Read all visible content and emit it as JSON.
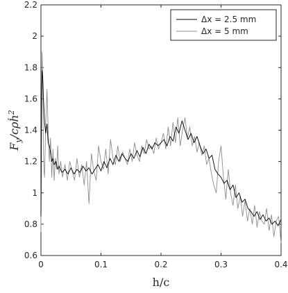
{
  "chart_data": {
    "type": "line",
    "xlabel": "h/c",
    "ylabel_main": "F",
    "ylabel_sub": "y",
    "ylabel_rest": "/cρḣ",
    "ylabel_sup": "2",
    "xlim": [
      0,
      0.4
    ],
    "ylim": [
      0.6,
      2.2
    ],
    "x_ticks": [
      0,
      0.1,
      0.2,
      0.3,
      0.4
    ],
    "x_tick_labels": [
      "0",
      "0.1",
      "0.2",
      "0.3",
      "0.4"
    ],
    "y_ticks": [
      0.6,
      0.8,
      1.0,
      1.2,
      1.4,
      1.6,
      1.8,
      2.0,
      2.2
    ],
    "y_tick_labels": [
      "0.6",
      "0.8",
      "1",
      "1.2",
      "1.4",
      "1.6",
      "1.8",
      "2",
      "2.2"
    ],
    "grid": false,
    "legend_position": "top-right",
    "series": [
      {
        "name": "Δx = 2.5 mm",
        "color": "#000000",
        "x": [
          0,
          0.001,
          0.002,
          0.003,
          0.004,
          0.006,
          0.008,
          0.01,
          0.012,
          0.014,
          0.016,
          0.018,
          0.02,
          0.022,
          0.025,
          0.028,
          0.03,
          0.035,
          0.04,
          0.045,
          0.05,
          0.055,
          0.06,
          0.065,
          0.07,
          0.075,
          0.08,
          0.085,
          0.09,
          0.095,
          0.1,
          0.105,
          0.11,
          0.115,
          0.12,
          0.125,
          0.13,
          0.135,
          0.14,
          0.145,
          0.15,
          0.155,
          0.16,
          0.165,
          0.17,
          0.175,
          0.18,
          0.185,
          0.19,
          0.195,
          0.2,
          0.205,
          0.21,
          0.215,
          0.22,
          0.225,
          0.23,
          0.235,
          0.24,
          0.245,
          0.25,
          0.255,
          0.26,
          0.265,
          0.27,
          0.275,
          0.28,
          0.285,
          0.29,
          0.295,
          0.3,
          0.305,
          0.31,
          0.315,
          0.32,
          0.325,
          0.33,
          0.335,
          0.34,
          0.345,
          0.35,
          0.355,
          0.36,
          0.365,
          0.37,
          0.375,
          0.38,
          0.385,
          0.39,
          0.395,
          0.4
        ],
        "y": [
          0.85,
          1.6,
          1.78,
          1.74,
          1.62,
          1.45,
          1.38,
          1.44,
          1.32,
          1.3,
          1.26,
          1.2,
          1.22,
          1.18,
          1.2,
          1.15,
          1.17,
          1.13,
          1.15,
          1.12,
          1.16,
          1.12,
          1.15,
          1.13,
          1.17,
          1.14,
          1.16,
          1.12,
          1.15,
          1.18,
          1.14,
          1.2,
          1.16,
          1.22,
          1.18,
          1.24,
          1.2,
          1.25,
          1.22,
          1.2,
          1.25,
          1.22,
          1.27,
          1.23,
          1.29,
          1.25,
          1.31,
          1.28,
          1.32,
          1.3,
          1.32,
          1.34,
          1.3,
          1.36,
          1.33,
          1.42,
          1.38,
          1.46,
          1.4,
          1.34,
          1.38,
          1.32,
          1.36,
          1.3,
          1.25,
          1.28,
          1.22,
          1.24,
          1.15,
          1.12,
          1.1,
          1.06,
          1.08,
          1.02,
          1.05,
          0.97,
          1.0,
          0.94,
          0.96,
          0.9,
          0.88,
          0.85,
          0.88,
          0.83,
          0.86,
          0.82,
          0.84,
          0.8,
          0.82,
          0.79,
          0.83
        ]
      },
      {
        "name": "Δx = 5 mm",
        "color": "#8c8c8c",
        "x": [
          0,
          0.001,
          0.002,
          0.003,
          0.004,
          0.005,
          0.006,
          0.008,
          0.01,
          0.012,
          0.014,
          0.016,
          0.018,
          0.02,
          0.022,
          0.024,
          0.026,
          0.028,
          0.03,
          0.033,
          0.036,
          0.04,
          0.044,
          0.048,
          0.052,
          0.056,
          0.06,
          0.064,
          0.068,
          0.072,
          0.076,
          0.08,
          0.084,
          0.088,
          0.092,
          0.096,
          0.1,
          0.104,
          0.108,
          0.112,
          0.116,
          0.12,
          0.124,
          0.128,
          0.132,
          0.136,
          0.14,
          0.144,
          0.148,
          0.152,
          0.156,
          0.16,
          0.164,
          0.168,
          0.172,
          0.176,
          0.18,
          0.184,
          0.188,
          0.192,
          0.196,
          0.2,
          0.204,
          0.208,
          0.212,
          0.216,
          0.22,
          0.224,
          0.228,
          0.232,
          0.236,
          0.24,
          0.244,
          0.248,
          0.252,
          0.256,
          0.26,
          0.264,
          0.268,
          0.272,
          0.276,
          0.28,
          0.284,
          0.288,
          0.292,
          0.296,
          0.3,
          0.304,
          0.308,
          0.312,
          0.316,
          0.32,
          0.324,
          0.328,
          0.332,
          0.336,
          0.34,
          0.344,
          0.348,
          0.352,
          0.356,
          0.36,
          0.364,
          0.368,
          0.372,
          0.376,
          0.38,
          0.384,
          0.388,
          0.392,
          0.396,
          0.4
        ],
        "y": [
          0.75,
          1.55,
          1.9,
          1.7,
          1.3,
          1.15,
          1.1,
          1.45,
          1.66,
          1.4,
          1.2,
          1.35,
          1.1,
          1.28,
          1.08,
          1.22,
          1.15,
          1.3,
          1.12,
          1.2,
          1.1,
          1.18,
          1.08,
          1.2,
          1.14,
          1.08,
          1.22,
          1.1,
          1.18,
          1.05,
          1.2,
          0.93,
          1.25,
          1.14,
          1.08,
          1.3,
          1.2,
          1.15,
          1.28,
          1.12,
          1.34,
          1.22,
          1.18,
          1.3,
          1.2,
          1.26,
          1.22,
          1.18,
          1.28,
          1.2,
          1.32,
          1.24,
          1.2,
          1.3,
          1.25,
          1.34,
          1.28,
          1.3,
          1.25,
          1.35,
          1.28,
          1.32,
          1.38,
          1.28,
          1.42,
          1.3,
          1.45,
          1.32,
          1.48,
          1.3,
          1.4,
          1.48,
          1.35,
          1.42,
          1.3,
          1.36,
          1.26,
          1.32,
          1.24,
          1.3,
          1.18,
          1.22,
          1.12,
          1.05,
          1.0,
          1.2,
          1.3,
          1.1,
          0.96,
          1.15,
          1.0,
          0.92,
          1.05,
          0.9,
          0.98,
          0.85,
          0.95,
          0.82,
          0.9,
          0.8,
          0.92,
          0.78,
          0.88,
          0.82,
          0.8,
          0.9,
          0.76,
          0.86,
          0.72,
          0.82,
          0.85,
          0.68
        ]
      }
    ]
  }
}
